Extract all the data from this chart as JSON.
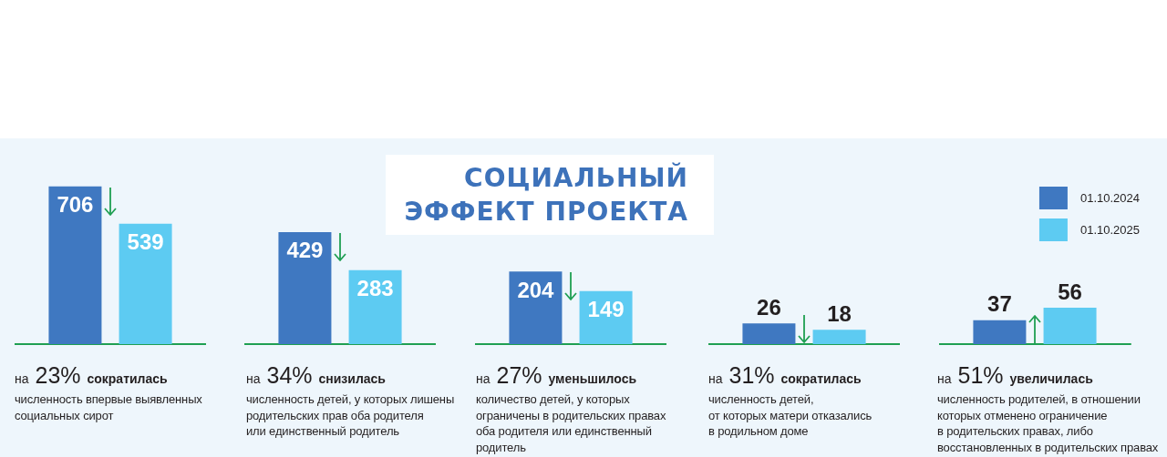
{
  "chart_data": [
    {
      "type": "other",
      "title": "СОЦИАЛЬНЫЙ ЭФФЕКТ ПРОЕКТА"
    },
    {
      "type": "bar",
      "categories": [
        null
      ],
      "tick_labels": false,
      "data_labels": true,
      "series": [
        {
          "color": "#3f78c1",
          "values": [
            706
          ]
        },
        {
          "color": "#5dcbf2",
          "values": [
            539
          ]
        }
      ],
      "annotations": [
        "на 23% сократилась",
        "численность впервые выявленных\nсоциальных сирот"
      ]
    },
    {
      "type": "bar",
      "categories": [
        null
      ],
      "tick_labels": false,
      "data_labels": true,
      "series": [
        {
          "color": "#3f78c1",
          "values": [
            429
          ]
        },
        {
          "color": "#5dcbf2",
          "values": [
            283
          ]
        }
      ],
      "annotations": [
        "на 34% снизилась",
        "численность детей, у которых лишены\nродительских прав оба родителя\nили единственный родитель"
      ]
    },
    {
      "type": "bar",
      "categories": [
        null
      ],
      "tick_labels": false,
      "data_labels": true,
      "series": [
        {
          "color": "#3f78c1",
          "values": [
            204
          ]
        },
        {
          "color": "#5dcbf2",
          "values": [
            149
          ]
        }
      ],
      "annotations": [
        "на 27% уменьшилось",
        "количество детей, у которых\nограничены в родительских правах\nоба родителя или единственный\nродитель"
      ]
    },
    {
      "type": "bar",
      "categories": [
        null
      ],
      "tick_labels": false,
      "data_labels": true,
      "series": [
        {
          "color": "#3f78c1",
          "values": [
            26
          ]
        },
        {
          "color": "#5dcbf2",
          "values": [
            18
          ]
        }
      ],
      "annotations": [
        "на 31% сократилась",
        "численность детей,\nот которых матери отказались\nв родильном доме"
      ]
    },
    {
      "type": "bar",
      "categories": [
        null
      ],
      "tick_labels": false,
      "data_labels": true,
      "legend": "top right",
      "series": [
        {
          "name": "01.10.2024",
          "color": "#3f78c1",
          "values": [
            37
          ]
        },
        {
          "name": "01.10.2025",
          "color": "#5dcbf2",
          "values": [
            56
          ]
        }
      ],
      "annotations": [
        "на 51% увеличилась",
        "численность родителей, в отношении\nкоторых отменено ограничение\nв родительских правах, либо\nвосстановленных в родительских правах"
      ]
    }
  ]
}
